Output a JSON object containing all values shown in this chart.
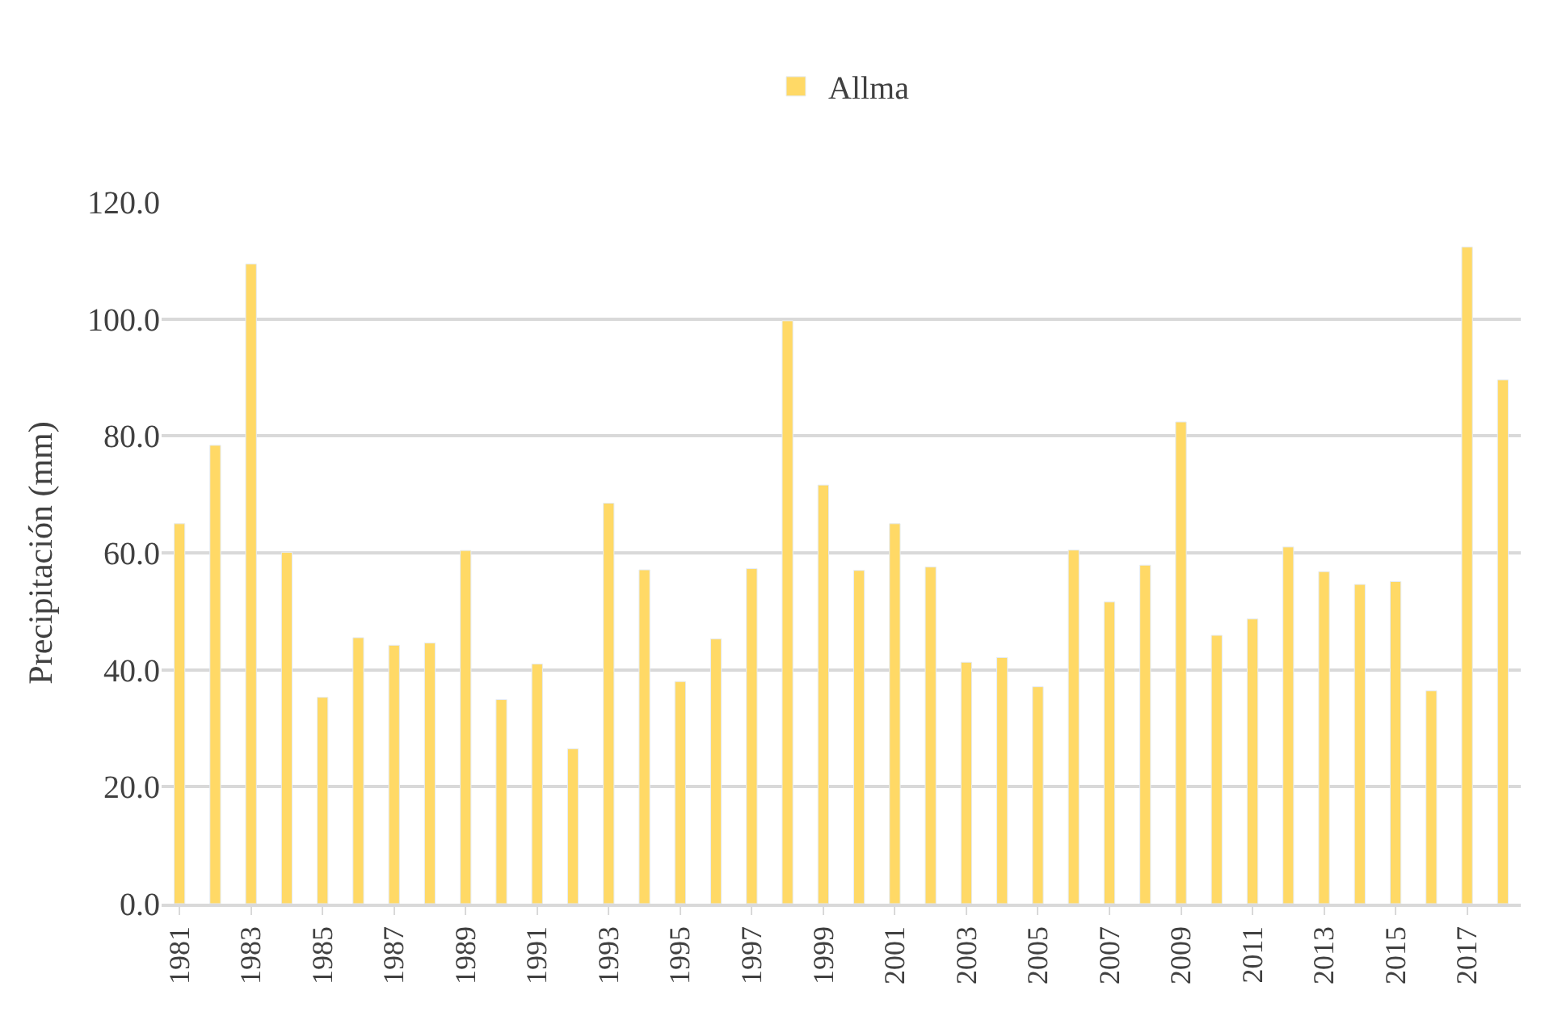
{
  "chart_data": {
    "type": "bar",
    "ylabel": "Precipitación (mm)",
    "categories": [
      "1981",
      null,
      "1983",
      null,
      "1985",
      null,
      "1987",
      null,
      "1989",
      null,
      "1991",
      null,
      "1993",
      null,
      "1995",
      null,
      "1997",
      null,
      "1999",
      null,
      "2001",
      null,
      "2003",
      null,
      "2005",
      null,
      "2007",
      null,
      "2009",
      null,
      "2011",
      null,
      "2013",
      null,
      "2015",
      null,
      "2017",
      null
    ],
    "series": [
      {
        "name": "Allma",
        "color": "#ffd966",
        "values": [
          65.0,
          78.4,
          109.4,
          60.1,
          35.3,
          45.5,
          44.2,
          44.6,
          60.4,
          34.9,
          41.0,
          26.5,
          68.5,
          57.1,
          38.0,
          45.3,
          57.3,
          99.7,
          71.6,
          57.0,
          65.0,
          57.6,
          41.3,
          42.1,
          37.1,
          60.5,
          51.6,
          57.9,
          82.4,
          45.9,
          48.7,
          61.0,
          56.8,
          54.6,
          55.1,
          36.4,
          112.3,
          89.6
        ]
      }
    ],
    "ylim": [
      0,
      120
    ],
    "yticks": [
      {
        "value": 0,
        "label": "0.0"
      },
      {
        "value": 20,
        "label": "20.0"
      },
      {
        "value": 40,
        "label": "40.0"
      },
      {
        "value": 60,
        "label": "60.0"
      },
      {
        "value": 80,
        "label": "80.0"
      },
      {
        "value": 100,
        "label": "100.0"
      },
      {
        "value": 120,
        "label": "120.0"
      }
    ],
    "grid": "y",
    "legend": "top"
  }
}
